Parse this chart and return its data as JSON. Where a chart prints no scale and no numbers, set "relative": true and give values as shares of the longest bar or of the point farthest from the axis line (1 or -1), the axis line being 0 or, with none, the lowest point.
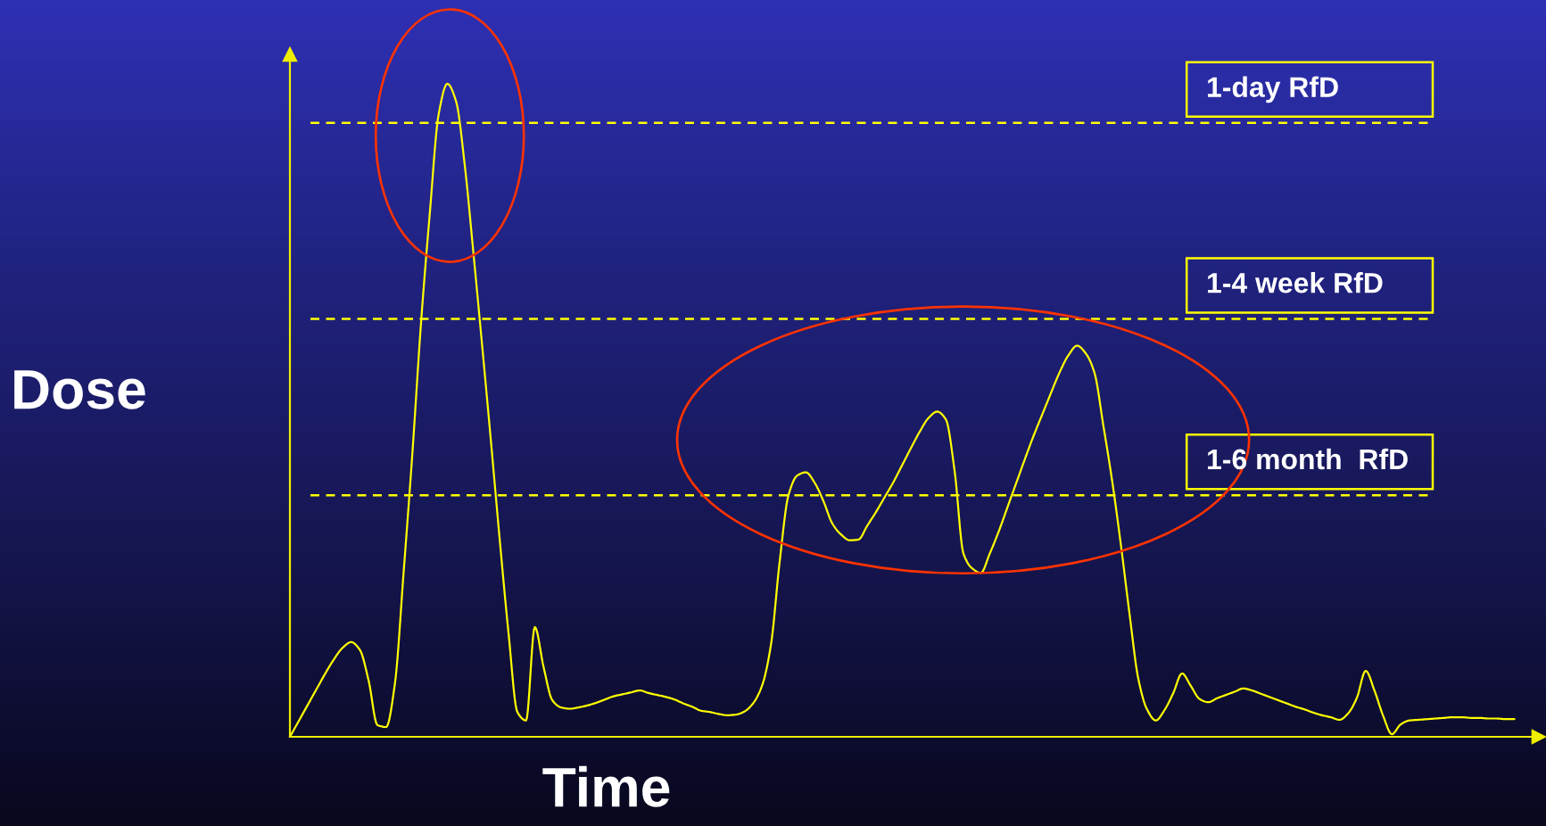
{
  "chart_data": {
    "type": "line",
    "xlabel": "Time",
    "ylabel": "Dose",
    "relative": true,
    "categories": [
      null,
      null,
      null,
      null,
      null,
      null,
      null,
      null,
      null,
      null,
      null,
      null,
      null,
      null,
      null,
      null,
      null,
      null,
      null,
      null,
      null,
      null,
      null,
      null,
      null,
      null,
      null,
      null,
      null,
      null,
      null,
      null,
      null,
      null,
      null,
      null,
      null,
      null,
      null,
      null,
      null,
      null,
      null,
      null,
      null,
      null,
      null,
      null,
      null,
      null,
      null,
      null,
      null,
      null,
      null,
      null,
      null,
      null,
      null,
      null,
      null,
      null,
      null,
      null,
      null,
      null,
      null,
      null,
      null,
      null,
      null,
      null,
      null,
      null,
      null,
      null,
      null,
      null,
      null,
      null,
      null,
      null,
      null,
      null,
      null,
      null,
      null,
      null,
      null,
      null,
      null,
      null,
      null,
      null,
      null,
      null,
      null,
      null,
      null,
      null,
      null,
      null,
      null,
      null,
      null,
      null,
      null,
      null,
      null,
      null,
      null,
      null,
      null,
      null,
      null,
      null,
      null,
      null,
      null,
      null,
      null,
      null,
      null,
      null,
      null,
      null,
      null,
      null,
      null,
      null,
      null,
      null,
      null,
      null,
      null,
      null,
      null,
      null,
      null,
      null,
      null
    ],
    "series": [
      {
        "color": "#ffff00",
        "values": [
          0.0,
          0.024,
          0.048,
          0.072,
          0.096,
          0.118,
          0.136,
          0.145,
          0.133,
          0.086,
          0.018,
          0.015,
          0.081,
          0.252,
          0.434,
          0.636,
          0.803,
          0.953,
          1.0,
          0.973,
          0.874,
          0.738,
          0.596,
          0.45,
          0.3,
          0.158,
          0.038,
          0.025,
          0.168,
          0.107,
          0.056,
          0.045,
          0.043,
          0.045,
          0.048,
          0.052,
          0.057,
          0.062,
          0.065,
          0.068,
          0.071,
          0.067,
          0.064,
          0.061,
          0.057,
          0.051,
          0.046,
          0.04,
          0.038,
          0.035,
          0.033,
          0.034,
          0.039,
          0.052,
          0.079,
          0.141,
          0.269,
          0.37,
          0.4,
          0.405,
          0.389,
          0.361,
          0.327,
          0.31,
          0.301,
          0.302,
          0.323,
          0.344,
          0.367,
          0.39,
          0.416,
          0.442,
          0.467,
          0.488,
          0.498,
          0.486,
          0.407,
          0.281,
          0.258,
          0.251,
          0.28,
          0.313,
          0.35,
          0.387,
          0.424,
          0.46,
          0.493,
          0.526,
          0.558,
          0.584,
          0.599,
          0.587,
          0.557,
          0.477,
          0.393,
          0.295,
          0.188,
          0.089,
          0.042,
          0.025,
          0.041,
          0.067,
          0.097,
          0.078,
          0.058,
          0.053,
          0.059,
          0.064,
          0.069,
          0.074,
          0.071,
          0.066,
          0.061,
          0.056,
          0.051,
          0.046,
          0.042,
          0.037,
          0.033,
          0.03,
          0.026,
          0.036,
          0.06,
          0.101,
          0.071,
          0.032,
          0.004,
          0.019,
          0.025,
          0.026,
          0.027,
          0.028,
          0.029,
          0.03,
          0.03,
          0.029,
          0.029,
          0.028,
          0.028,
          0.027,
          0.027
        ]
      }
    ],
    "ref_lines": [
      {
        "axis": "y",
        "value": 0.94,
        "label": "1-day RfD",
        "color": "#ffff00",
        "line_style": "dashed"
      },
      {
        "axis": "y",
        "value": 0.64,
        "label": "1-4 week RfD",
        "color": "#ffff00",
        "line_style": "dashed"
      },
      {
        "axis": "y",
        "value": 0.37,
        "label": "1-6 month  RfD",
        "color": "#ffff00",
        "line_style": "dashed"
      }
    ]
  }
}
